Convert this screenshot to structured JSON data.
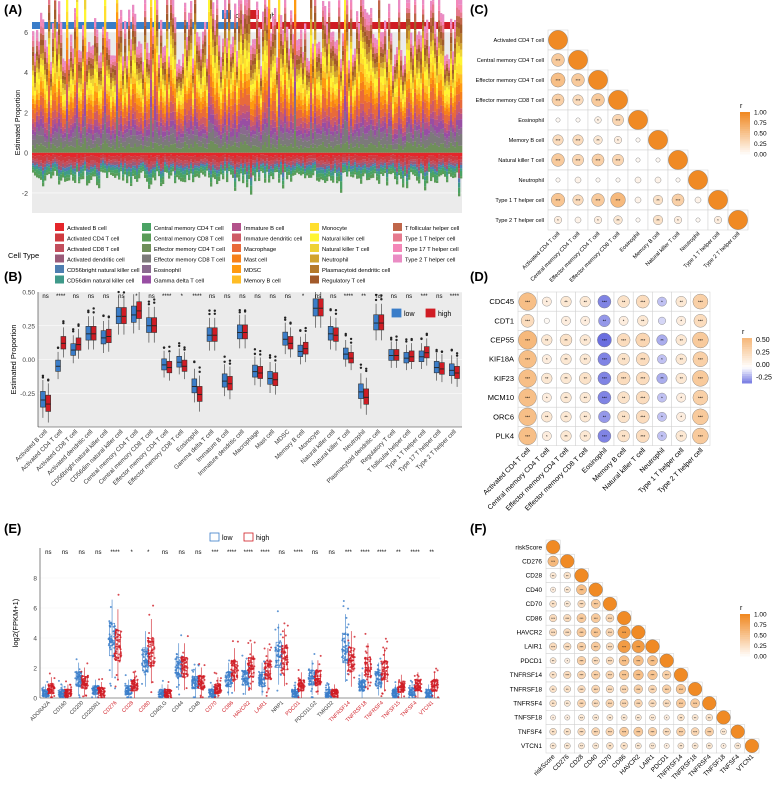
{
  "panels": {
    "A": {
      "label": "(A)"
    },
    "B": {
      "label": "(B)"
    },
    "C": {
      "label": "(C)"
    },
    "D": {
      "label": "(D)"
    },
    "E": {
      "label": "(E)"
    },
    "F": {
      "label": "(F)"
    }
  },
  "colors": {
    "low": "#3a7dc9",
    "high": "#d01c24",
    "corr_pos": "#f08a24",
    "corr_neg": "#6b6fe0"
  },
  "chart_data": [
    {
      "panel": "A",
      "type": "area",
      "title": "",
      "ylabel": "Estimated Proportion",
      "yticks": [
        "6",
        "4",
        "2",
        "0",
        "-2"
      ],
      "ylim": [
        -3,
        6
      ],
      "group_bar_legend": [
        "low",
        "high"
      ],
      "legend_title": "Cell Type",
      "series": [
        {
          "name": "Activated B cell",
          "color": "#e5262b"
        },
        {
          "name": "Activated CD4 T cell",
          "color": "#cf3a3f"
        },
        {
          "name": "Activated CD8 T cell",
          "color": "#c24e5d"
        },
        {
          "name": "Activated dendritic cell",
          "color": "#9a5a78"
        },
        {
          "name": "CD56bright natural killer cell",
          "color": "#4e7fb1"
        },
        {
          "name": "CD56dim natural killer cell",
          "color": "#3f9a8a"
        },
        {
          "name": "Central memory CD4 T cell",
          "color": "#4aa364"
        },
        {
          "name": "Central memory CD8 T cell",
          "color": "#5a9c58"
        },
        {
          "name": "Effector memory CD4 T cell",
          "color": "#6f8f5a"
        },
        {
          "name": "Effector memory CD8 T cell",
          "color": "#7c7a7a"
        },
        {
          "name": "Eosinophil",
          "color": "#8a6a8f"
        },
        {
          "name": "Gamma delta T cell",
          "color": "#984ea3"
        },
        {
          "name": "Immature B cell",
          "color": "#b3528b"
        },
        {
          "name": "Immature dendritic cell",
          "color": "#cf5b66"
        },
        {
          "name": "Macrophage",
          "color": "#e96a3a"
        },
        {
          "name": "Mast cell",
          "color": "#f6801a"
        },
        {
          "name": "MDSC",
          "color": "#ff9a10"
        },
        {
          "name": "Memory B cell",
          "color": "#ffbd25"
        },
        {
          "name": "Monocyte",
          "color": "#ffdf2e"
        },
        {
          "name": "Natural killer cell",
          "color": "#fff533"
        },
        {
          "name": "Natural killer T cell",
          "color": "#eed235"
        },
        {
          "name": "Neutrophil",
          "color": "#d1a32f"
        },
        {
          "name": "Plasmacytoid dendritic cell",
          "color": "#b57a2b"
        },
        {
          "name": "Regulatory T cell",
          "color": "#a25a2a"
        },
        {
          "name": "T follicular helper cell",
          "color": "#c0664a"
        },
        {
          "name": "Type 1 T helper cell",
          "color": "#e67a8e"
        },
        {
          "name": "Type 17 T helper cell",
          "color": "#f487b8"
        },
        {
          "name": "Type 2 T helper cell",
          "color": "#ea8cc4"
        }
      ]
    },
    {
      "panel": "B",
      "type": "box",
      "ylabel": "Estimated Proportion",
      "ylim": [
        -0.5,
        0.5
      ],
      "yticks": [
        -0.25,
        0.0,
        0.25,
        0.5
      ],
      "legend": [
        "low",
        "high"
      ],
      "categories": [
        "Activated B cell",
        "Activated CD4 T cell",
        "Activated CD8 T cell",
        "Activated dendritic cell",
        "CD56bright natural killer cell",
        "CD56dim natural killer cell",
        "Central memory CD4 T cell",
        "Central memory CD8 T cell",
        "Effector memory CD4 T cell",
        "Effector memory CD8 T cell",
        "Eosinophil",
        "Gamma delta T cell",
        "Immature B cell",
        "Immature dendritic cell",
        "Macrophage",
        "Mast cell",
        "MDSC",
        "Memory B cell",
        "Monocyte",
        "Natural killer cell",
        "Natural killer T cell",
        "Neutrophil",
        "Plasmacytoid dendritic cell",
        "Regulatory T cell",
        "T follicular helper cell",
        "Type 1 T helper cell",
        "Type 17 T helper cell",
        "Type 2 T helper cell"
      ],
      "significance": [
        "ns",
        "****",
        "ns",
        "ns",
        "ns",
        "ns",
        "*",
        "ns",
        "****",
        "*",
        "****",
        "ns",
        "ns",
        "ns",
        "ns",
        "ns",
        "ns",
        "*",
        "ns",
        "ns",
        "****",
        "**",
        "ns",
        "ns",
        "ns",
        "***",
        "ns",
        "****"
      ],
      "medians_low": [
        -0.3,
        -0.05,
        0.07,
        0.19,
        0.16,
        0.32,
        0.33,
        0.25,
        -0.04,
        -0.02,
        -0.2,
        0.18,
        -0.16,
        0.2,
        -0.09,
        -0.14,
        0.15,
        0.06,
        0.38,
        0.19,
        0.04,
        -0.24,
        0.27,
        0.03,
        0.01,
        0.02,
        -0.06,
        -0.08
      ],
      "medians_high": [
        -0.33,
        0.12,
        0.11,
        0.19,
        0.17,
        0.32,
        0.36,
        0.25,
        -0.06,
        -0.05,
        -0.26,
        0.18,
        -0.18,
        0.2,
        -0.1,
        -0.15,
        0.12,
        0.08,
        0.38,
        0.18,
        0.01,
        -0.28,
        0.27,
        0.03,
        0.02,
        0.05,
        -0.07,
        -0.1
      ]
    },
    {
      "panel": "C",
      "type": "heatmap",
      "labels": [
        "Activated CD4 T cell",
        "Central memory CD4 T cell",
        "Effector memory CD4 T cell",
        "Effector memory CD8 T cell",
        "Eosinophil",
        "Memory B cell",
        "Natural killer T cell",
        "Neutrophil",
        "Type 1 T helper cell",
        "Type 2 T helper cell"
      ],
      "legend_title": "r",
      "legend_ticks": [
        "1.00",
        "0.75",
        "0.50",
        "0.25",
        "0.00"
      ],
      "matrix": [
        [
          1.0
        ],
        [
          0.45,
          1.0
        ],
        [
          0.55,
          0.45,
          1.0
        ],
        [
          0.4,
          0.3,
          0.45,
          1.0
        ],
        [
          0.05,
          0.05,
          0.12,
          0.35,
          1.0
        ],
        [
          0.3,
          0.3,
          0.2,
          0.15,
          0.05,
          1.0
        ],
        [
          0.45,
          0.35,
          0.4,
          0.35,
          0.05,
          0.05,
          1.0
        ],
        [
          0.05,
          0.1,
          0.05,
          0.05,
          0.1,
          0.1,
          0.05,
          1.0
        ],
        [
          0.5,
          0.3,
          0.45,
          0.6,
          0.1,
          0.25,
          0.4,
          0.1,
          1.0
        ],
        [
          0.15,
          0.1,
          0.15,
          0.2,
          0.05,
          0.25,
          0.15,
          0.05,
          0.15,
          1.0
        ]
      ]
    },
    {
      "panel": "D",
      "type": "heatmap",
      "rows": [
        "CDC45",
        "CDT1",
        "CEP55",
        "KIF18A",
        "KIF23",
        "MCM10",
        "ORC6",
        "PLK4"
      ],
      "cols": [
        "Activated CD4 T cell",
        "Central memory CD4 T cell",
        "Effector memory CD4 T cell",
        "Effector memory CD8 T cell",
        "Eosinophil",
        "Memory B cell",
        "Natural killer T cell",
        "Neutrophil",
        "Type 1 T helper cell",
        "Type 2 T helper cell"
      ],
      "legend_title": "r",
      "legend_ticks": [
        "0.50",
        "0.25",
        "0.00",
        "-0.25"
      ],
      "matrix": [
        [
          0.55,
          0.15,
          0.2,
          0.2,
          -0.3,
          0.25,
          0.3,
          -0.15,
          0.2,
          0.4
        ],
        [
          0.3,
          0.05,
          0.15,
          0.15,
          -0.25,
          0.15,
          0.2,
          -0.1,
          0.15,
          0.3
        ],
        [
          0.6,
          0.2,
          0.25,
          0.2,
          -0.35,
          0.3,
          0.35,
          -0.2,
          0.2,
          0.45
        ],
        [
          0.55,
          0.15,
          0.2,
          0.2,
          -0.3,
          0.25,
          0.3,
          -0.15,
          0.2,
          0.4
        ],
        [
          0.55,
          0.2,
          0.2,
          0.25,
          -0.3,
          0.3,
          0.3,
          -0.2,
          0.2,
          0.45
        ],
        [
          0.55,
          0.15,
          0.2,
          0.2,
          -0.3,
          0.25,
          0.3,
          -0.15,
          0.15,
          0.4
        ],
        [
          0.55,
          0.2,
          0.2,
          0.2,
          -0.25,
          0.25,
          0.3,
          -0.15,
          0.15,
          0.45
        ],
        [
          0.55,
          0.15,
          0.2,
          0.2,
          -0.3,
          0.25,
          0.3,
          -0.15,
          0.2,
          0.45
        ]
      ]
    },
    {
      "panel": "E",
      "type": "box",
      "ylabel": "log2(FPKM+1)",
      "ylim": [
        0,
        10
      ],
      "yticks": [
        0,
        2,
        4,
        6,
        8
      ],
      "legend": [
        "low",
        "high"
      ],
      "categories": [
        "ADORA2A",
        "CD160",
        "CD200",
        "CD200R1",
        "CD276",
        "CD28",
        "CD80",
        "CD40LG",
        "CD44",
        "CD48",
        "CD70",
        "CD86",
        "HAVCR2",
        "LAIR1",
        "NRP1",
        "PDCD1",
        "PDCD1LG2",
        "TMIGD2",
        "TNFRSF14",
        "TNFRSF18",
        "TNFRSF4",
        "TNFSF15",
        "TNFSF4",
        "VTCN1"
      ],
      "highlighted": [
        "CD276",
        "CD28",
        "CD80",
        "CD70",
        "CD86",
        "HAVCR2",
        "LAIR1",
        "PDCD1",
        "TNFRSF14",
        "TNFRSF18",
        "TNFRSF4",
        "TNFSF15",
        "TNFSF4",
        "VTCN1"
      ],
      "significance": [
        "ns",
        "ns",
        "ns",
        "ns",
        "****",
        "*",
        "*",
        "ns",
        "ns",
        "ns",
        "***",
        "****",
        "****",
        "****",
        "ns",
        "****",
        "ns",
        "ns",
        "***",
        "****",
        "****",
        "**",
        "****",
        "**"
      ],
      "medians_low": [
        0.3,
        0.3,
        1.2,
        0.5,
        3.8,
        0.5,
        2.5,
        0.3,
        2.0,
        1.0,
        0.3,
        1.2,
        1.3,
        1.2,
        2.8,
        0.3,
        1.3,
        0.3,
        3.2,
        0.8,
        1.2,
        0.3,
        0.4,
        0.3
      ],
      "medians_high": [
        0.6,
        0.3,
        1.0,
        0.4,
        3.4,
        0.8,
        3.0,
        0.3,
        2.0,
        1.0,
        0.6,
        1.8,
        2.0,
        1.8,
        2.6,
        0.8,
        1.3,
        0.3,
        2.5,
        2.0,
        1.8,
        0.7,
        0.8,
        0.8
      ]
    },
    {
      "panel": "F",
      "type": "heatmap",
      "labels": [
        "riskScore",
        "CD276",
        "CD28",
        "CD40",
        "CD70",
        "CD86",
        "HAVCR2",
        "LAIR1",
        "PDCD1",
        "TNFRSF14",
        "TNFRSF18",
        "TNFRSF4",
        "TNFSF18",
        "TNFSF4",
        "VTCN1"
      ],
      "legend_title": "r",
      "legend_ticks": [
        "1.00",
        "0.75",
        "0.50",
        "0.25",
        "0.00"
      ],
      "matrix": [
        [
          1.0
        ],
        [
          0.6,
          1.0
        ],
        [
          0.2,
          0.25,
          1.0
        ],
        [
          0.15,
          0.2,
          0.55,
          1.0
        ],
        [
          0.25,
          0.2,
          0.3,
          0.45,
          1.0
        ],
        [
          0.3,
          0.3,
          0.45,
          0.45,
          0.35,
          1.0
        ],
        [
          0.3,
          0.3,
          0.45,
          0.5,
          0.35,
          0.85,
          1.0
        ],
        [
          0.3,
          0.3,
          0.4,
          0.45,
          0.3,
          0.85,
          0.85,
          1.0
        ],
        [
          0.2,
          0.15,
          0.4,
          0.3,
          0.3,
          0.55,
          0.55,
          0.55,
          1.0
        ],
        [
          0.25,
          0.3,
          0.35,
          0.4,
          0.35,
          0.5,
          0.55,
          0.5,
          0.4,
          1.0
        ],
        [
          0.25,
          0.25,
          0.3,
          0.35,
          0.3,
          0.35,
          0.4,
          0.35,
          0.4,
          0.5,
          1.0
        ],
        [
          0.25,
          0.2,
          0.35,
          0.3,
          0.35,
          0.35,
          0.35,
          0.3,
          0.3,
          0.45,
          0.45,
          1.0
        ],
        [
          0.15,
          0.15,
          0.2,
          0.2,
          0.2,
          0.2,
          0.2,
          0.2,
          0.15,
          0.25,
          0.2,
          0.25,
          1.0
        ],
        [
          0.25,
          0.25,
          0.3,
          0.35,
          0.35,
          0.45,
          0.45,
          0.4,
          0.3,
          0.4,
          0.35,
          0.4,
          0.2,
          1.0
        ],
        [
          0.2,
          0.2,
          0.2,
          0.2,
          0.25,
          0.25,
          0.2,
          0.2,
          0.15,
          0.2,
          0.2,
          0.2,
          0.15,
          0.2,
          1.0
        ]
      ]
    }
  ]
}
